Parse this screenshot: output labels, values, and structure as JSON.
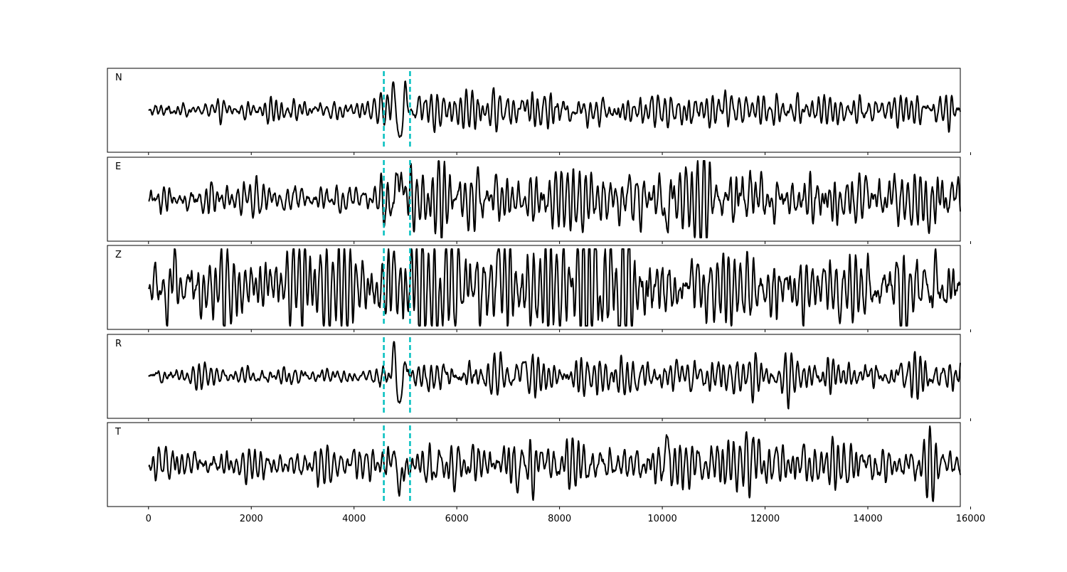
{
  "chart_data": {
    "type": "line",
    "title": "",
    "xlabel": "",
    "ylabel": "",
    "xlim": [
      -800,
      15800
    ],
    "x_ticks": [
      0,
      2000,
      4000,
      6000,
      8000,
      10000,
      12000,
      14000,
      16000
    ],
    "x_tick_labels": [
      "0",
      "2000",
      "4000",
      "6000",
      "8000",
      "10000",
      "12000",
      "14000",
      "16000"
    ],
    "grid": false,
    "line_color": "#000000",
    "marker_color": "#00bfbf",
    "markers": [
      {
        "x": 4580,
        "style": "dashed"
      },
      {
        "x": 5090,
        "style": "dashed"
      }
    ],
    "x_start": 0,
    "x_end": 15800,
    "panels": [
      {
        "label": "N",
        "ylim": [
          -1.2,
          1.2
        ],
        "noise_amp": 0.12,
        "segments": [
          {
            "from": 0,
            "to": 4500,
            "amp": 0.12
          },
          {
            "from": 4500,
            "to": 5500,
            "amp": 0.2
          },
          {
            "from": 5500,
            "to": 11500,
            "amp": 0.22
          },
          {
            "from": 11500,
            "to": 15800,
            "amp": 0.18
          }
        ],
        "events": [
          {
            "x": 4780,
            "amp": 0.8
          },
          {
            "x": 4880,
            "amp": -1.1
          },
          {
            "x": 5000,
            "amp": 0.45
          },
          {
            "x": 7300,
            "amp": 0.4
          },
          {
            "x": 11200,
            "amp": 0.35
          }
        ]
      },
      {
        "label": "E",
        "ylim": [
          -1.2,
          1.2
        ],
        "noise_amp": 0.2,
        "segments": [
          {
            "from": 0,
            "to": 4500,
            "amp": 0.22
          },
          {
            "from": 4500,
            "to": 9800,
            "amp": 0.38
          },
          {
            "from": 9800,
            "to": 12000,
            "amp": 0.45
          },
          {
            "from": 12000,
            "to": 15800,
            "amp": 0.35
          }
        ],
        "events": [
          {
            "x": 4820,
            "amp": 1.15
          },
          {
            "x": 4760,
            "amp": -0.8
          },
          {
            "x": 4960,
            "amp": 0.6
          },
          {
            "x": 10060,
            "amp": -0.8
          },
          {
            "x": 15200,
            "amp": -0.6
          }
        ]
      },
      {
        "label": "Z",
        "ylim": [
          -1.2,
          1.2
        ],
        "noise_amp": 0.2,
        "segments": [
          {
            "from": 0,
            "to": 4500,
            "amp": 0.45
          },
          {
            "from": 4500,
            "to": 8500,
            "amp": 0.55
          },
          {
            "from": 8500,
            "to": 9800,
            "amp": 0.75
          },
          {
            "from": 9800,
            "to": 15800,
            "amp": 0.45
          }
        ],
        "events": [
          {
            "x": 380,
            "amp": -0.95
          },
          {
            "x": 440,
            "amp": 0.85
          },
          {
            "x": 9150,
            "amp": -1.0
          },
          {
            "x": 9020,
            "amp": 0.9
          },
          {
            "x": 6850,
            "amp": 0.85
          },
          {
            "x": 14720,
            "amp": -0.7
          }
        ]
      },
      {
        "label": "R",
        "ylim": [
          -1.2,
          1.2
        ],
        "noise_amp": 0.1,
        "segments": [
          {
            "from": 0,
            "to": 4500,
            "amp": 0.12
          },
          {
            "from": 4500,
            "to": 5500,
            "amp": 0.2
          },
          {
            "from": 5500,
            "to": 15800,
            "amp": 0.22
          }
        ],
        "events": [
          {
            "x": 4780,
            "amp": 0.85
          },
          {
            "x": 4880,
            "amp": -1.1
          },
          {
            "x": 5000,
            "amp": 0.45
          },
          {
            "x": 7300,
            "amp": 0.4
          }
        ]
      },
      {
        "label": "T",
        "ylim": [
          -1.2,
          1.2
        ],
        "noise_amp": 0.16,
        "segments": [
          {
            "from": 0,
            "to": 4500,
            "amp": 0.22
          },
          {
            "from": 4500,
            "to": 9800,
            "amp": 0.3
          },
          {
            "from": 9800,
            "to": 12000,
            "amp": 0.35
          },
          {
            "from": 12000,
            "to": 15800,
            "amp": 0.3
          }
        ],
        "events": [
          {
            "x": 4880,
            "amp": -1.05
          },
          {
            "x": 4780,
            "amp": 0.4
          },
          {
            "x": 10060,
            "amp": 0.95
          },
          {
            "x": 10000,
            "amp": -0.55
          },
          {
            "x": 11800,
            "amp": 0.55
          }
        ]
      }
    ]
  }
}
